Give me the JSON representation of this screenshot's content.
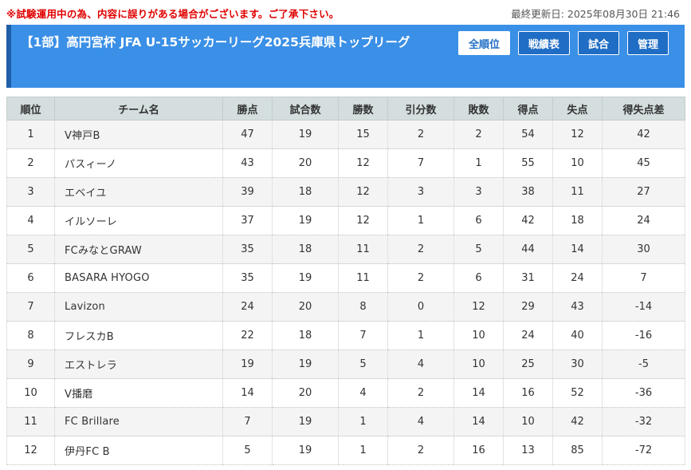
{
  "notice": "※試験運用中の為、内容に誤りがある場合がございます。ご了承下さい。",
  "last_updated": "最終更新日: 2025年08月30日 21:46",
  "header": {
    "title": "【1部】高円宮杯 JFA U-15サッカーリーグ2025兵庫県トップリーグ",
    "nav": [
      {
        "label": "全順位",
        "active": true
      },
      {
        "label": "戦績表",
        "active": false
      },
      {
        "label": "試合",
        "active": false
      },
      {
        "label": "管理",
        "active": false
      }
    ]
  },
  "table": {
    "columns": [
      "順位",
      "チーム名",
      "勝点",
      "試合数",
      "勝数",
      "引分数",
      "敗数",
      "得点",
      "失点",
      "得失点差"
    ],
    "rows": [
      [
        "1",
        "V神戸B",
        "47",
        "19",
        "15",
        "2",
        "2",
        "54",
        "12",
        "42"
      ],
      [
        "2",
        "パスィーノ",
        "43",
        "20",
        "12",
        "7",
        "1",
        "55",
        "10",
        "45"
      ],
      [
        "3",
        "エベイユ",
        "39",
        "18",
        "12",
        "3",
        "3",
        "38",
        "11",
        "27"
      ],
      [
        "4",
        "イルソーレ",
        "37",
        "19",
        "12",
        "1",
        "6",
        "42",
        "18",
        "24"
      ],
      [
        "5",
        "FCみなとGRAW",
        "35",
        "18",
        "11",
        "2",
        "5",
        "44",
        "14",
        "30"
      ],
      [
        "6",
        "BASARA HYOGO",
        "35",
        "19",
        "11",
        "2",
        "6",
        "31",
        "24",
        "7"
      ],
      [
        "7",
        "Lavizon",
        "24",
        "20",
        "8",
        "0",
        "12",
        "29",
        "43",
        "-14"
      ],
      [
        "8",
        "フレスカB",
        "22",
        "18",
        "7",
        "1",
        "10",
        "24",
        "40",
        "-16"
      ],
      [
        "9",
        "エストレラ",
        "19",
        "19",
        "5",
        "4",
        "10",
        "25",
        "30",
        "-5"
      ],
      [
        "10",
        "V播磨",
        "14",
        "20",
        "4",
        "2",
        "14",
        "16",
        "52",
        "-36"
      ],
      [
        "11",
        "FC Brillare",
        "7",
        "19",
        "1",
        "4",
        "14",
        "10",
        "42",
        "-32"
      ],
      [
        "12",
        "伊丹FC B",
        "5",
        "19",
        "1",
        "2",
        "16",
        "13",
        "85",
        "-72"
      ]
    ]
  }
}
